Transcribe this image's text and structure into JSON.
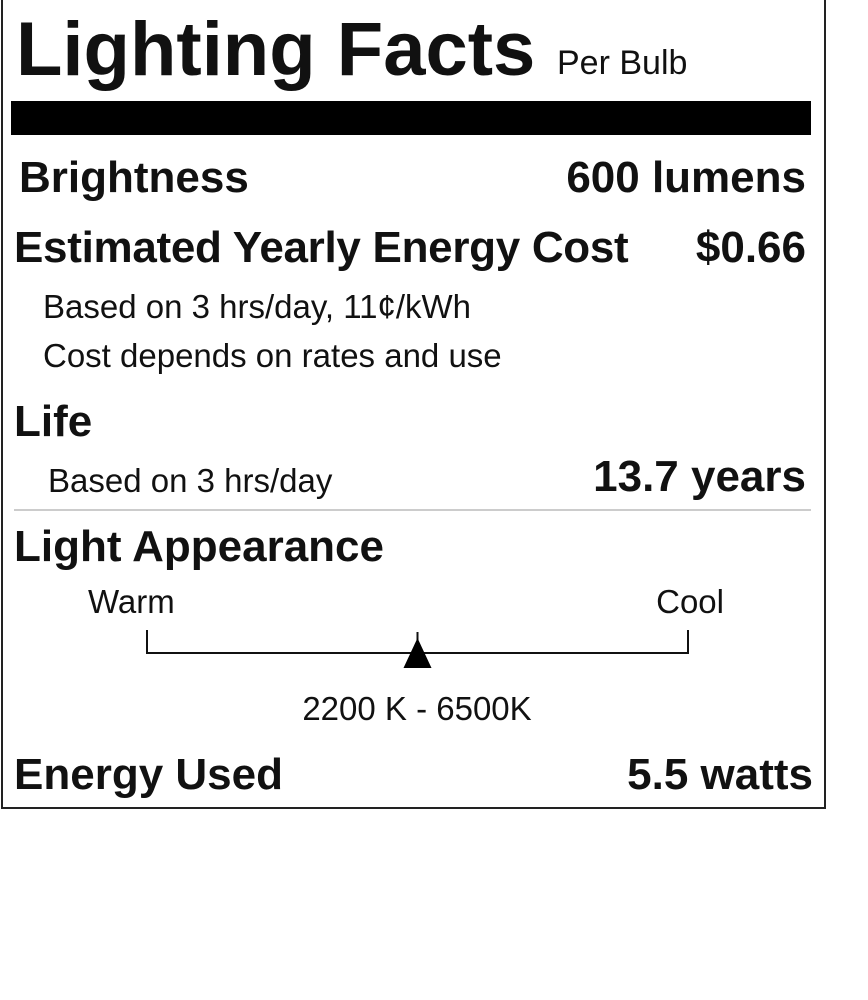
{
  "header": {
    "title": "Lighting Facts",
    "subtitle": "Per Bulb"
  },
  "brightness": {
    "label": "Brightness",
    "value": "600 lumens"
  },
  "energy_cost": {
    "label": "Estimated Yearly Energy Cost",
    "value": "$0.66",
    "note1": "Based on 3 hrs/day, 11¢/kWh",
    "note2": "Cost depends on rates and use"
  },
  "life": {
    "label": "Life",
    "note": "Based on 3 hrs/day",
    "value": "13.7 years"
  },
  "light_appearance": {
    "label": "Light Appearance",
    "warm_label": "Warm",
    "cool_label": "Cool",
    "range": "2200 K - 6500K",
    "marker_fraction": 0.5
  },
  "energy_used": {
    "label": "Energy Used",
    "value": "5.5 watts"
  }
}
